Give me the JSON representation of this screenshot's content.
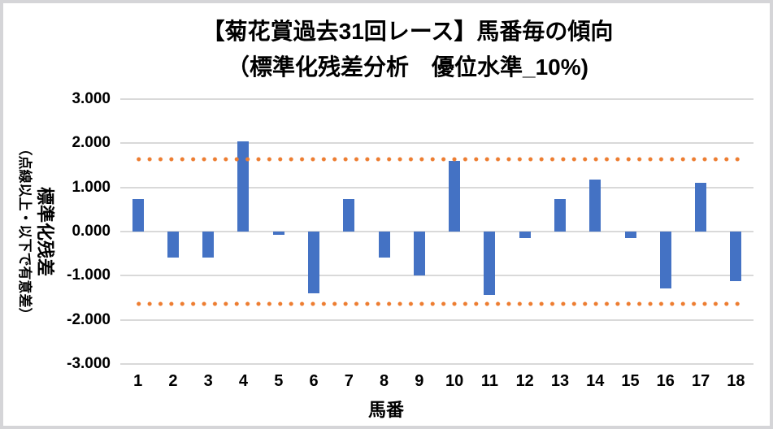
{
  "window": {
    "background_color": "#ffffff",
    "border_color": "#d5d5d8"
  },
  "chart_data": {
    "type": "bar",
    "title": "【菊花賞過去31回レース】馬番毎の傾向",
    "subtitle": "（標準化残差分析　優位水準_10%)",
    "xlabel": "馬番",
    "ylabel_main": "標準化残差",
    "ylabel_sub": "（点線以上・以下で有意差）",
    "categories": [
      "1",
      "2",
      "3",
      "4",
      "5",
      "6",
      "7",
      "8",
      "9",
      "10",
      "11",
      "12",
      "13",
      "14",
      "15",
      "16",
      "17",
      "18"
    ],
    "values": [
      0.74,
      -0.58,
      -0.58,
      2.04,
      -0.08,
      -1.4,
      0.74,
      -0.58,
      -0.99,
      1.6,
      -1.44,
      -0.15,
      0.74,
      1.17,
      -0.14,
      -1.28,
      1.1,
      -1.12
    ],
    "ylim": [
      -3,
      3
    ],
    "ytick_step": 1,
    "ytick_labels": [
      "3.000",
      "2.000",
      "1.000",
      "0.000",
      "-1.000",
      "-2.000",
      "-3.000"
    ],
    "significance_level": 1.645,
    "significance_lines": [
      1.645,
      -1.645
    ],
    "grid": true,
    "legend": "none",
    "bar_color": "#4472C4",
    "sig_line_color": "#ED7D31",
    "gridline_color": "#D9D9D9",
    "text_color": "#000000"
  }
}
